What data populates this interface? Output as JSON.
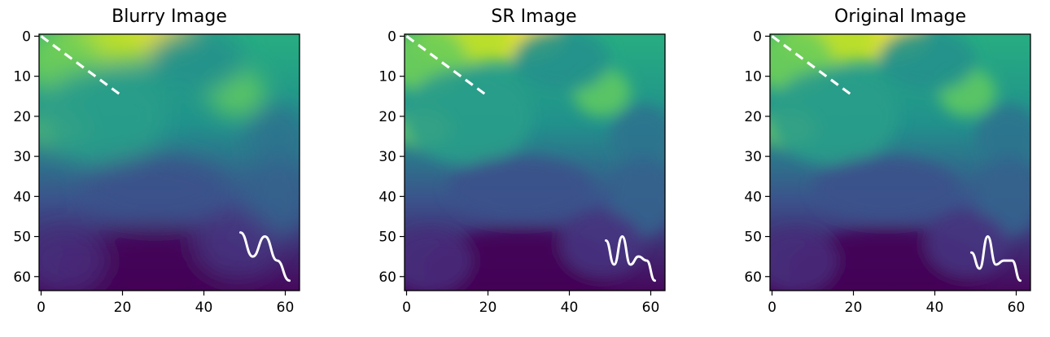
{
  "chart_data": [
    {
      "type": "heatmap",
      "title": "Blurry Image",
      "colormap": "viridis",
      "grid": false,
      "image_size": [
        64,
        64
      ],
      "xlim": [
        -0.5,
        63.5
      ],
      "ylim": [
        63.5,
        -0.5
      ],
      "xticks": [
        0,
        20,
        40,
        60
      ],
      "yticks": [
        0,
        10,
        20,
        30,
        40,
        50,
        60
      ],
      "overlays": [
        {
          "kind": "dashed-line",
          "color": "#ffffff",
          "x": [
            0,
            20
          ],
          "y": [
            0,
            15
          ]
        },
        {
          "kind": "wavy-line",
          "color": "#ffffff",
          "x": [
            49,
            52,
            55,
            58,
            61
          ],
          "y": [
            49,
            55,
            50,
            56,
            61
          ]
        }
      ]
    },
    {
      "type": "heatmap",
      "title": "SR Image",
      "colormap": "viridis",
      "grid": false,
      "image_size": [
        64,
        64
      ],
      "xlim": [
        -0.5,
        63.5
      ],
      "ylim": [
        63.5,
        -0.5
      ],
      "xticks": [
        0,
        20,
        40,
        60
      ],
      "yticks": [
        0,
        10,
        20,
        30,
        40,
        50,
        60
      ],
      "overlays": [
        {
          "kind": "dashed-line",
          "color": "#ffffff",
          "x": [
            0,
            20
          ],
          "y": [
            0,
            15
          ]
        },
        {
          "kind": "wavy-line",
          "color": "#ffffff",
          "x": [
            49,
            51,
            53,
            55,
            57,
            59,
            61
          ],
          "y": [
            51,
            57,
            50,
            57,
            55,
            56,
            61
          ]
        }
      ]
    },
    {
      "type": "heatmap",
      "title": "Original Image",
      "colormap": "viridis",
      "grid": false,
      "image_size": [
        64,
        64
      ],
      "xlim": [
        -0.5,
        63.5
      ],
      "ylim": [
        63.5,
        -0.5
      ],
      "xticks": [
        0,
        20,
        40,
        60
      ],
      "yticks": [
        0,
        10,
        20,
        30,
        40,
        50,
        60
      ],
      "overlays": [
        {
          "kind": "dashed-line",
          "color": "#ffffff",
          "x": [
            0,
            20
          ],
          "y": [
            0,
            15
          ]
        },
        {
          "kind": "wavy-line",
          "color": "#ffffff",
          "x": [
            49,
            51,
            53,
            55,
            57,
            59,
            61
          ],
          "y": [
            54,
            58,
            50,
            57,
            56,
            56,
            61
          ]
        }
      ]
    }
  ]
}
